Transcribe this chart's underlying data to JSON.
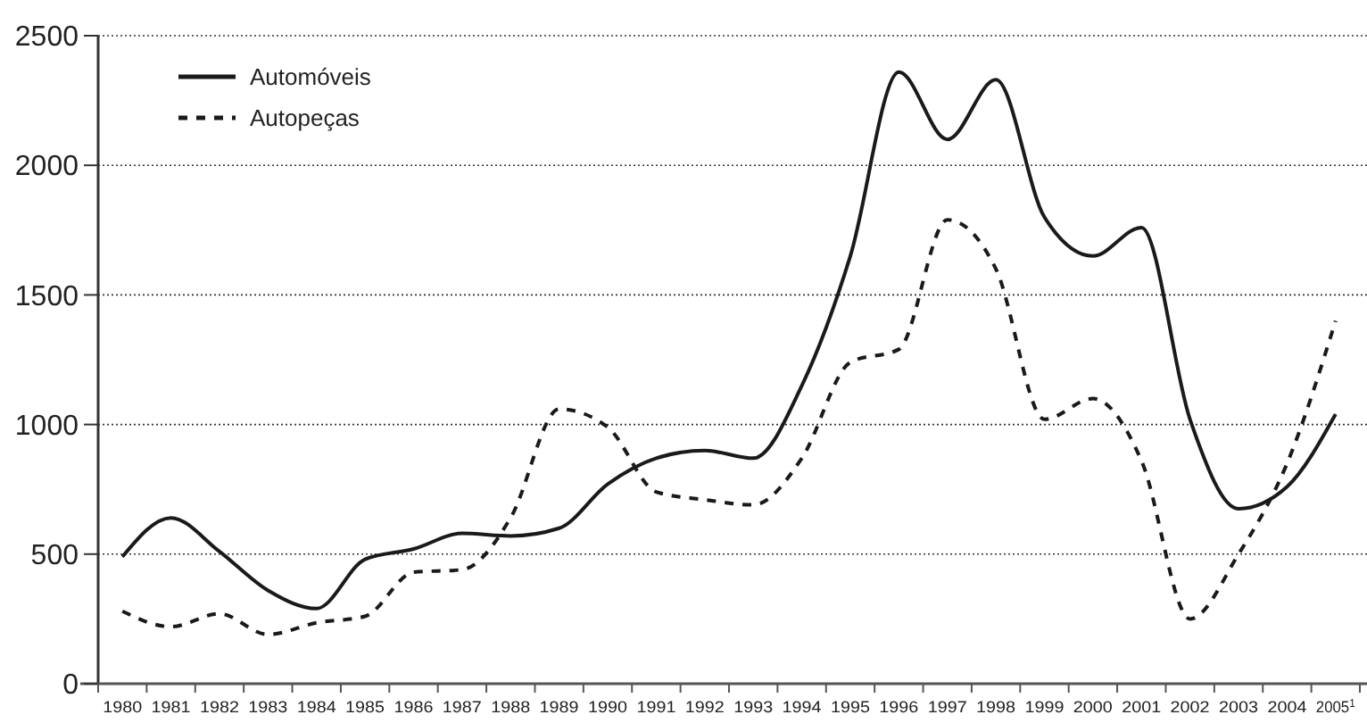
{
  "chart_data": {
    "type": "line",
    "categories": [
      "1980",
      "1981",
      "1982",
      "1983",
      "1984",
      "1985",
      "1986",
      "1987",
      "1988",
      "1989",
      "1990",
      "1991",
      "1992",
      "1993",
      "1994",
      "1995",
      "1996",
      "1997",
      "1998",
      "1999",
      "2000",
      "2001",
      "2002",
      "2003",
      "2004",
      "2005$^{1}$"
    ],
    "series": [
      {
        "name": "Automóveis",
        "color": "#1a1a1a",
        "line_style": "solid",
        "values": [
          490,
          640,
          510,
          360,
          290,
          480,
          520,
          580,
          570,
          600,
          770,
          870,
          900,
          870,
          1150,
          1650,
          2360,
          2100,
          2330,
          1800,
          1650,
          1760,
          1020,
          675,
          760,
          1040
        ]
      },
      {
        "name": "Autopeças",
        "color": "#1a1a1a",
        "line_style": "dashed",
        "values": [
          280,
          220,
          270,
          190,
          235,
          260,
          430,
          440,
          640,
          1060,
          990,
          740,
          710,
          690,
          870,
          1240,
          1290,
          1790,
          1600,
          1020,
          1100,
          860,
          250,
          500,
          850,
          1400
        ]
      }
    ],
    "ylim": [
      0,
      2500
    ],
    "yticks": [
      0,
      500,
      1000,
      1500,
      2000,
      2500
    ],
    "grid": "y",
    "legend": "top left"
  }
}
